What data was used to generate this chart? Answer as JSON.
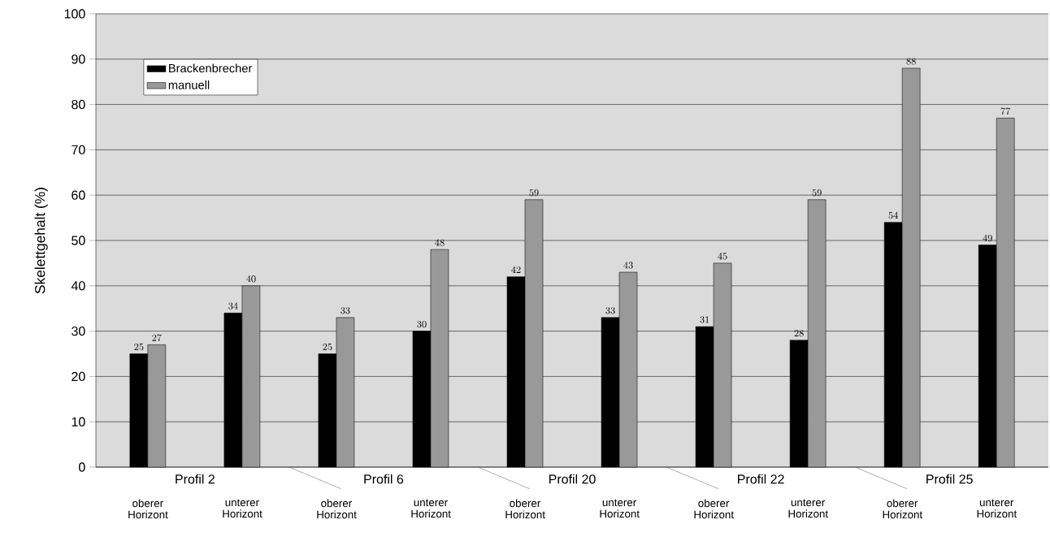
{
  "chart_data": {
    "type": "bar",
    "ylabel": "Skelettgehalt (%)",
    "categories": [
      "oberer Horizont",
      "unterer Horizont",
      "oberer Horizont",
      "unterer Horizont",
      "oberer Horizont",
      "unterer Horizont",
      "oberer Horizont",
      "unterer Horizont",
      "oberer Horizont",
      "unterer Horizont"
    ],
    "series": [
      {
        "name": "Brackenbrecher",
        "color": "#000000",
        "values": [
          25,
          34,
          25,
          30,
          42,
          33,
          31,
          28,
          54,
          49
        ]
      },
      {
        "name": "manuell",
        "color": "#999999",
        "values": [
          27,
          40,
          33,
          48,
          59,
          43,
          45,
          59,
          88,
          77
        ]
      }
    ],
    "annotations": [
      "Profil 2",
      "Profil 6",
      "Profil 20",
      "Profil 22",
      "Profil 25"
    ],
    "ylim": [
      0,
      100
    ],
    "yticks": [
      0,
      10,
      20,
      30,
      40,
      50,
      60,
      70,
      80,
      90,
      100
    ],
    "grid": "y",
    "legend": "top left",
    "data_labels": true
  }
}
